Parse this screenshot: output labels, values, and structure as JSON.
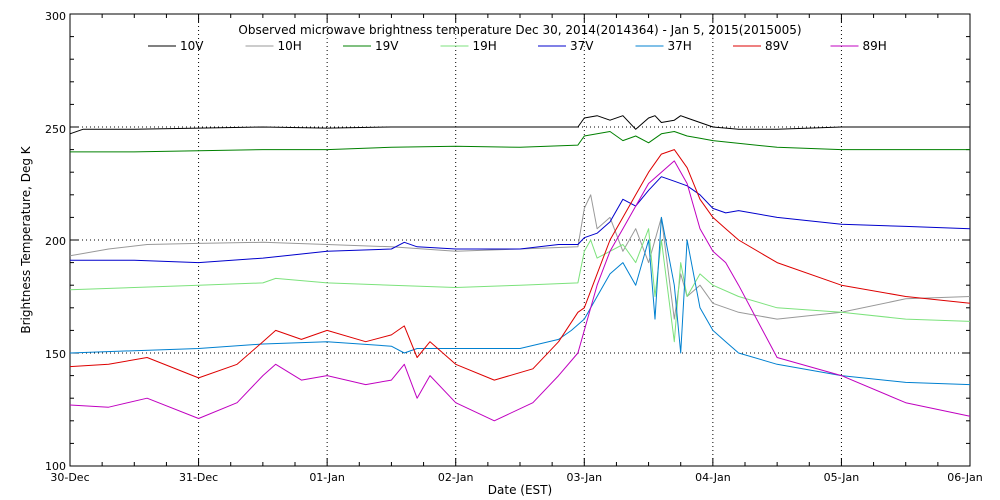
{
  "chart_data": {
    "type": "line",
    "title": "Observed microwave brightness temperature Dec 30, 2014(2014364) - Jan  5, 2015(2015005)",
    "xlabel": "Date (EST)",
    "ylabel": "Brightness Temperature, Deg K",
    "x_ticks": [
      "30-Dec",
      "31-Dec",
      "01-Jan",
      "02-Jan",
      "03-Jan",
      "04-Jan",
      "05-Jan",
      "06-Jan"
    ],
    "y_ticks": [
      "100",
      "150",
      "200",
      "250",
      "300"
    ],
    "xlim": [
      0,
      7
    ],
    "ylim": [
      100,
      300
    ],
    "grid": "dotted vertical lines at each day and horizontal lines at 150, 200, 250",
    "legend_position": "top",
    "series": [
      {
        "name": "10V",
        "color": "#000000",
        "x": [
          0,
          0.1,
          0.5,
          1,
          1.5,
          2,
          2.5,
          3,
          3.5,
          3.95,
          4.0,
          4.1,
          4.2,
          4.3,
          4.4,
          4.5,
          4.55,
          4.6,
          4.7,
          4.75,
          4.8,
          4.9,
          5.0,
          5.2,
          5.5,
          6,
          6.5,
          7
        ],
        "y": [
          247,
          249,
          249,
          249.5,
          250,
          249.5,
          250,
          250,
          250,
          250,
          254,
          255,
          253,
          255,
          249,
          254,
          255,
          252,
          253,
          255,
          254,
          252,
          250,
          249,
          249,
          250,
          250,
          250
        ]
      },
      {
        "name": "10H",
        "color": "#999999",
        "x": [
          0,
          0.3,
          0.6,
          1,
          1.5,
          2,
          2.5,
          3,
          3.5,
          3.95,
          4.0,
          4.05,
          4.1,
          4.2,
          4.3,
          4.4,
          4.5,
          4.6,
          4.7,
          4.75,
          4.8,
          4.9,
          5.0,
          5.2,
          5.5,
          6,
          6.5,
          7
        ],
        "y": [
          193,
          196,
          198,
          198.5,
          199,
          198,
          197,
          195,
          196,
          197,
          214,
          220,
          205,
          210,
          195,
          205,
          190,
          210,
          165,
          185,
          175,
          180,
          172,
          168,
          165,
          168,
          174,
          175
        ]
      },
      {
        "name": "19V",
        "color": "#008000",
        "x": [
          0,
          0.5,
          1,
          1.5,
          2,
          2.5,
          3,
          3.5,
          3.95,
          4.0,
          4.2,
          4.3,
          4.4,
          4.5,
          4.6,
          4.7,
          4.8,
          4.9,
          5.0,
          5.5,
          6,
          6.5,
          7
        ],
        "y": [
          239,
          239,
          239.5,
          240,
          240,
          241,
          241.5,
          241,
          242,
          246,
          248,
          244,
          246,
          243,
          247,
          248,
          246,
          245,
          244,
          241,
          240,
          240,
          240
        ]
      },
      {
        "name": "19H",
        "color": "#7CE27C",
        "x": [
          0,
          0.5,
          1,
          1.5,
          1.6,
          2,
          2.5,
          3,
          3.5,
          3.95,
          4.0,
          4.05,
          4.1,
          4.2,
          4.3,
          4.4,
          4.5,
          4.55,
          4.6,
          4.7,
          4.75,
          4.8,
          4.9,
          5.0,
          5.2,
          5.5,
          6,
          6.5,
          7
        ],
        "y": [
          178,
          179,
          180,
          181,
          183,
          181,
          180,
          179,
          180,
          181,
          195,
          200,
          192,
          195,
          198,
          190,
          205,
          175,
          200,
          155,
          190,
          175,
          185,
          180,
          175,
          170,
          168,
          165,
          164
        ]
      },
      {
        "name": "37V",
        "color": "#0000CC",
        "x": [
          0,
          0.5,
          1,
          1.5,
          2,
          2.5,
          2.6,
          2.7,
          3,
          3.5,
          3.8,
          3.95,
          4.0,
          4.1,
          4.2,
          4.3,
          4.4,
          4.5,
          4.6,
          4.7,
          4.8,
          4.9,
          5.0,
          5.1,
          5.2,
          5.5,
          6,
          6.5,
          7
        ],
        "y": [
          191,
          191,
          190,
          192,
          195,
          196,
          199,
          197,
          196,
          196,
          198,
          198,
          201,
          203,
          208,
          218,
          215,
          222,
          228,
          226,
          224,
          220,
          214,
          212,
          213,
          210,
          207,
          206,
          205
        ]
      },
      {
        "name": "37H",
        "color": "#0080D0",
        "x": [
          0,
          0.5,
          1,
          1.5,
          2,
          2.5,
          2.6,
          2.7,
          3,
          3.5,
          3.8,
          3.9,
          4.0,
          4.1,
          4.2,
          4.3,
          4.4,
          4.5,
          4.55,
          4.6,
          4.7,
          4.75,
          4.8,
          4.9,
          5.0,
          5.1,
          5.2,
          5.5,
          6,
          6.5,
          7
        ],
        "y": [
          150,
          151,
          152,
          154,
          155,
          153,
          150,
          152,
          152,
          152,
          156,
          160,
          165,
          175,
          185,
          190,
          180,
          200,
          165,
          210,
          180,
          150,
          200,
          170,
          160,
          155,
          150,
          145,
          140,
          137,
          136
        ]
      },
      {
        "name": "89V",
        "color": "#DD0000",
        "x": [
          0,
          0.3,
          0.6,
          1,
          1.3,
          1.5,
          1.6,
          1.8,
          2,
          2.3,
          2.5,
          2.6,
          2.7,
          2.8,
          3,
          3.3,
          3.6,
          3.8,
          3.95,
          4.0,
          4.1,
          4.2,
          4.3,
          4.4,
          4.5,
          4.6,
          4.7,
          4.8,
          4.9,
          5.0,
          5.1,
          5.2,
          5.5,
          6,
          6.5,
          7
        ],
        "y": [
          144,
          145,
          148,
          139,
          145,
          155,
          160,
          156,
          160,
          155,
          158,
          162,
          148,
          155,
          145,
          138,
          143,
          155,
          168,
          170,
          185,
          200,
          210,
          220,
          230,
          238,
          240,
          232,
          218,
          210,
          205,
          200,
          190,
          180,
          175,
          172
        ]
      },
      {
        "name": "89H",
        "color": "#C000C0",
        "x": [
          0,
          0.3,
          0.6,
          1,
          1.3,
          1.5,
          1.6,
          1.8,
          2,
          2.3,
          2.5,
          2.6,
          2.7,
          2.8,
          3,
          3.3,
          3.6,
          3.8,
          3.95,
          4.0,
          4.1,
          4.2,
          4.3,
          4.4,
          4.5,
          4.6,
          4.7,
          4.8,
          4.9,
          5.0,
          5.1,
          5.2,
          5.5,
          6,
          6.5,
          7
        ],
        "y": [
          127,
          126,
          130,
          121,
          128,
          140,
          145,
          138,
          140,
          136,
          138,
          145,
          130,
          140,
          128,
          120,
          128,
          140,
          150,
          160,
          180,
          195,
          205,
          215,
          225,
          230,
          235,
          225,
          205,
          195,
          190,
          180,
          148,
          140,
          128,
          122
        ]
      }
    ]
  }
}
